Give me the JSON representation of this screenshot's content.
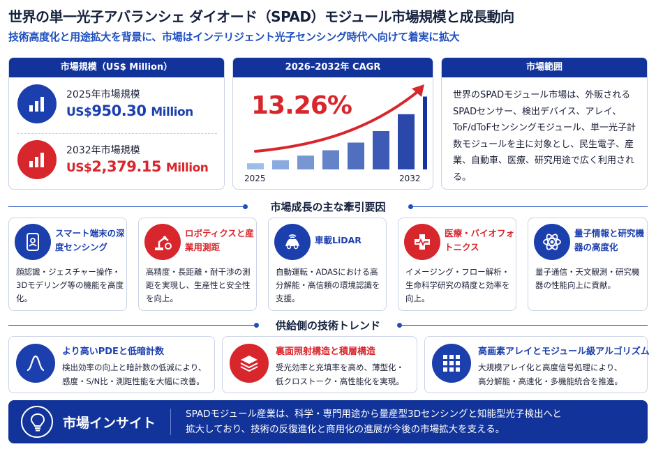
{
  "header": {
    "title": "世界の単一光子アバランシェ ダイオード（SPAD）モジュール市場規模と成長動向",
    "subtitle": "技術高度化と用途拡大を背景に、市場はインテリジェント光子センシング時代へ向けて着実に拡大"
  },
  "market_size": {
    "heading": "市場規模（US$ Million）",
    "rows": [
      {
        "label": "2025年市場規模",
        "prefix": "US$",
        "amount": "950.30",
        "unit": "Million",
        "icon": "bar-chart-icon",
        "color": "#1c3fae"
      },
      {
        "label": "2032年市場規模",
        "prefix": "US$",
        "amount": "2,379.15",
        "unit": "Million",
        "icon": "bar-chart-icon",
        "color": "#d8262d"
      }
    ]
  },
  "cagr": {
    "heading": "2026–2032年 CAGR",
    "value": "13.26%",
    "start_label": "2025",
    "end_label": "2032",
    "bar_levels": [
      0.08,
      0.12,
      0.18,
      0.25,
      0.35,
      0.5,
      0.72,
      0.95
    ],
    "icon": "growth-arrow-icon"
  },
  "scope": {
    "heading": "市場範囲",
    "text": "世界のSPADモジュール市場は、外販されるSPADセンサー、検出デバイス、アレイ、ToF/dToFセンシングモジュール、単一光子計数モジュールを主に対象とし、民生電子、産業、自動車、医療、研究用途で広く利用される。"
  },
  "drivers": {
    "heading": "市場成長の主な牽引要因",
    "items": [
      {
        "title": "スマート端末の深度センシング",
        "body": "顔認識・ジェスチャー操作・3Dモデリング等の機能を高度化。",
        "icon": "smartphone-face-icon",
        "color": "blue"
      },
      {
        "title": "ロボティクスと産業用測距",
        "body": "高精度・長距離・耐干渉の測距を実現し、生産性と安全性を向上。",
        "icon": "robot-arm-icon",
        "color": "red"
      },
      {
        "title": "車載LiDAR",
        "body": "自動運転・ADASにおける高分解能・高信頼の環境認識を支援。",
        "icon": "car-lidar-icon",
        "color": "blue"
      },
      {
        "title": "医療・バイオフォトニクス",
        "body": "イメージング・フロー解析・生命科学研究の精度と効率を向上。",
        "icon": "medical-cross-icon",
        "color": "red"
      },
      {
        "title": "量子情報と研究機器の高度化",
        "body": "量子通信・天文観測・研究機器の性能向上に貢献。",
        "icon": "atom-icon",
        "color": "blue"
      }
    ]
  },
  "tech": {
    "heading": "供給側の技術トレンド",
    "items": [
      {
        "title": "より高いPDEと低暗計数",
        "body": [
          "検出効率の向上と暗計数の低減により、",
          "感度・S/N比・測距性能を大幅に改善。"
        ],
        "icon": "pulse-peak-icon",
        "color": "blue"
      },
      {
        "title": "裏面照射構造と積層構造",
        "body": [
          "受光効率と充填率を高め、薄型化・",
          "低クロストーク・高性能化を実現。"
        ],
        "icon": "layers-icon",
        "color": "red"
      },
      {
        "title": "高画素アレイとモジュール級アルゴリズム",
        "body": [
          "大規模アレイ化と高度信号処理により、",
          "高分解能・高速化・多機能統合を推進。"
        ],
        "icon": "pixel-grid-icon",
        "color": "blue"
      }
    ]
  },
  "insight": {
    "title": "市場インサイト",
    "lines": [
      "SPADモジュール産業は、科学・専門用途から量産型3Dセンシングと知能型光子検出へと",
      "拡大しており、技術の反復進化と商用化の進展が今後の市場拡大を支える。"
    ],
    "icon": "lightbulb-icon"
  }
}
